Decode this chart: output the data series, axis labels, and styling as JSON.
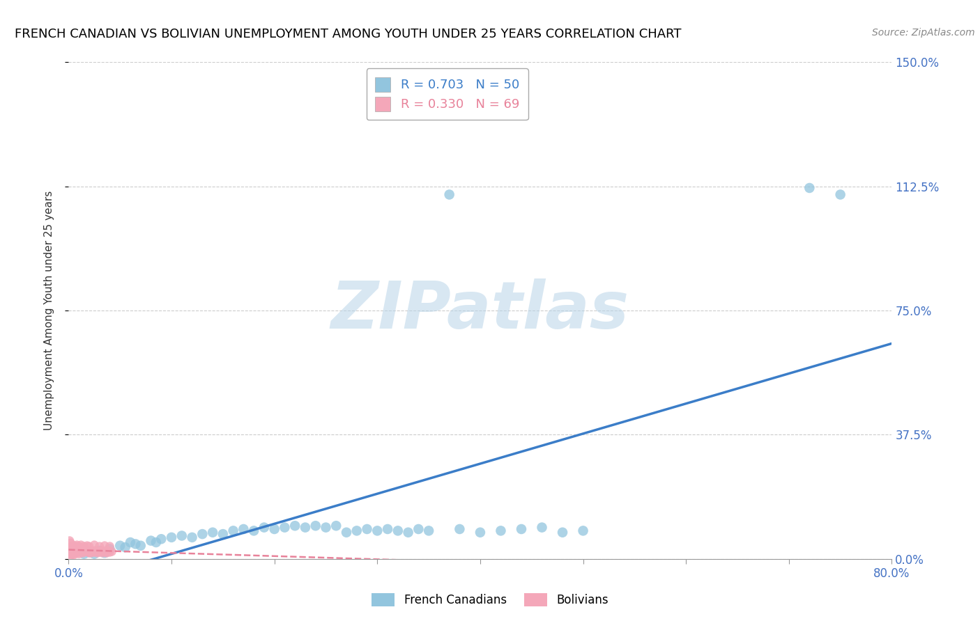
{
  "title": "FRENCH CANADIAN VS BOLIVIAN UNEMPLOYMENT AMONG YOUTH UNDER 25 YEARS CORRELATION CHART",
  "source": "Source: ZipAtlas.com",
  "ylabel": "Unemployment Among Youth under 25 years",
  "xlim": [
    0.0,
    0.8
  ],
  "ylim": [
    0.0,
    1.5
  ],
  "ytick_positions": [
    0.0,
    0.375,
    0.75,
    1.125,
    1.5
  ],
  "ytick_labels": [
    "0.0%",
    "37.5%",
    "75.0%",
    "112.5%",
    "150.0%"
  ],
  "blue_scatter_color": "#92C5DE",
  "pink_scatter_color": "#F4A7B9",
  "blue_line_color": "#3B7DC8",
  "pink_line_color": "#E8829A",
  "tick_label_color": "#4472C4",
  "watermark_text": "ZIPatlas",
  "grid_color": "#CCCCCC",
  "french_canadians_x": [
    0.02,
    0.025,
    0.03,
    0.035,
    0.04,
    0.05,
    0.055,
    0.06,
    0.065,
    0.07,
    0.08,
    0.085,
    0.09,
    0.1,
    0.11,
    0.12,
    0.13,
    0.14,
    0.15,
    0.16,
    0.17,
    0.18,
    0.19,
    0.2,
    0.21,
    0.22,
    0.23,
    0.24,
    0.25,
    0.26,
    0.27,
    0.28,
    0.29,
    0.3,
    0.31,
    0.32,
    0.33,
    0.34,
    0.35,
    0.38,
    0.4,
    0.42,
    0.44,
    0.46,
    0.48,
    0.5,
    0.37,
    0.75,
    0.72,
    0.015
  ],
  "french_canadians_y": [
    0.02,
    0.015,
    0.025,
    0.018,
    0.03,
    0.04,
    0.035,
    0.05,
    0.045,
    0.04,
    0.055,
    0.05,
    0.06,
    0.065,
    0.07,
    0.065,
    0.075,
    0.08,
    0.075,
    0.085,
    0.09,
    0.085,
    0.095,
    0.09,
    0.095,
    0.1,
    0.095,
    0.1,
    0.095,
    0.1,
    0.08,
    0.085,
    0.09,
    0.085,
    0.09,
    0.085,
    0.08,
    0.09,
    0.085,
    0.09,
    0.08,
    0.085,
    0.09,
    0.095,
    0.08,
    0.085,
    1.1,
    1.1,
    1.12,
    0.015
  ],
  "bolivians_x": [
    0.001,
    0.002,
    0.002,
    0.003,
    0.003,
    0.004,
    0.005,
    0.005,
    0.006,
    0.006,
    0.007,
    0.008,
    0.008,
    0.009,
    0.01,
    0.01,
    0.011,
    0.012,
    0.013,
    0.014,
    0.015,
    0.015,
    0.016,
    0.017,
    0.018,
    0.019,
    0.02,
    0.02,
    0.021,
    0.022,
    0.023,
    0.024,
    0.025,
    0.026,
    0.027,
    0.028,
    0.029,
    0.03,
    0.031,
    0.032,
    0.033,
    0.034,
    0.035,
    0.036,
    0.037,
    0.038,
    0.039,
    0.04,
    0.042,
    0.001,
    0.002,
    0.003,
    0.004,
    0.005,
    0.006,
    0.007,
    0.008,
    0.009,
    0.01,
    0.012,
    0.015,
    0.018,
    0.02,
    0.025,
    0.03,
    0.035,
    0.04,
    0.001,
    0.002
  ],
  "bolivians_y": [
    0.015,
    0.02,
    0.01,
    0.025,
    0.015,
    0.02,
    0.012,
    0.018,
    0.022,
    0.016,
    0.02,
    0.018,
    0.025,
    0.02,
    0.015,
    0.022,
    0.025,
    0.02,
    0.025,
    0.018,
    0.022,
    0.028,
    0.025,
    0.022,
    0.025,
    0.02,
    0.018,
    0.025,
    0.022,
    0.018,
    0.025,
    0.022,
    0.02,
    0.025,
    0.022,
    0.018,
    0.022,
    0.02,
    0.025,
    0.022,
    0.018,
    0.025,
    0.022,
    0.02,
    0.018,
    0.022,
    0.025,
    0.02,
    0.022,
    0.035,
    0.03,
    0.038,
    0.032,
    0.04,
    0.035,
    0.038,
    0.042,
    0.035,
    0.038,
    0.042,
    0.038,
    0.04,
    0.038,
    0.042,
    0.038,
    0.04,
    0.038,
    0.055,
    0.048
  ],
  "legend_line1": "R = 0.703   N = 50",
  "legend_line2": "R = 0.330   N = 69"
}
